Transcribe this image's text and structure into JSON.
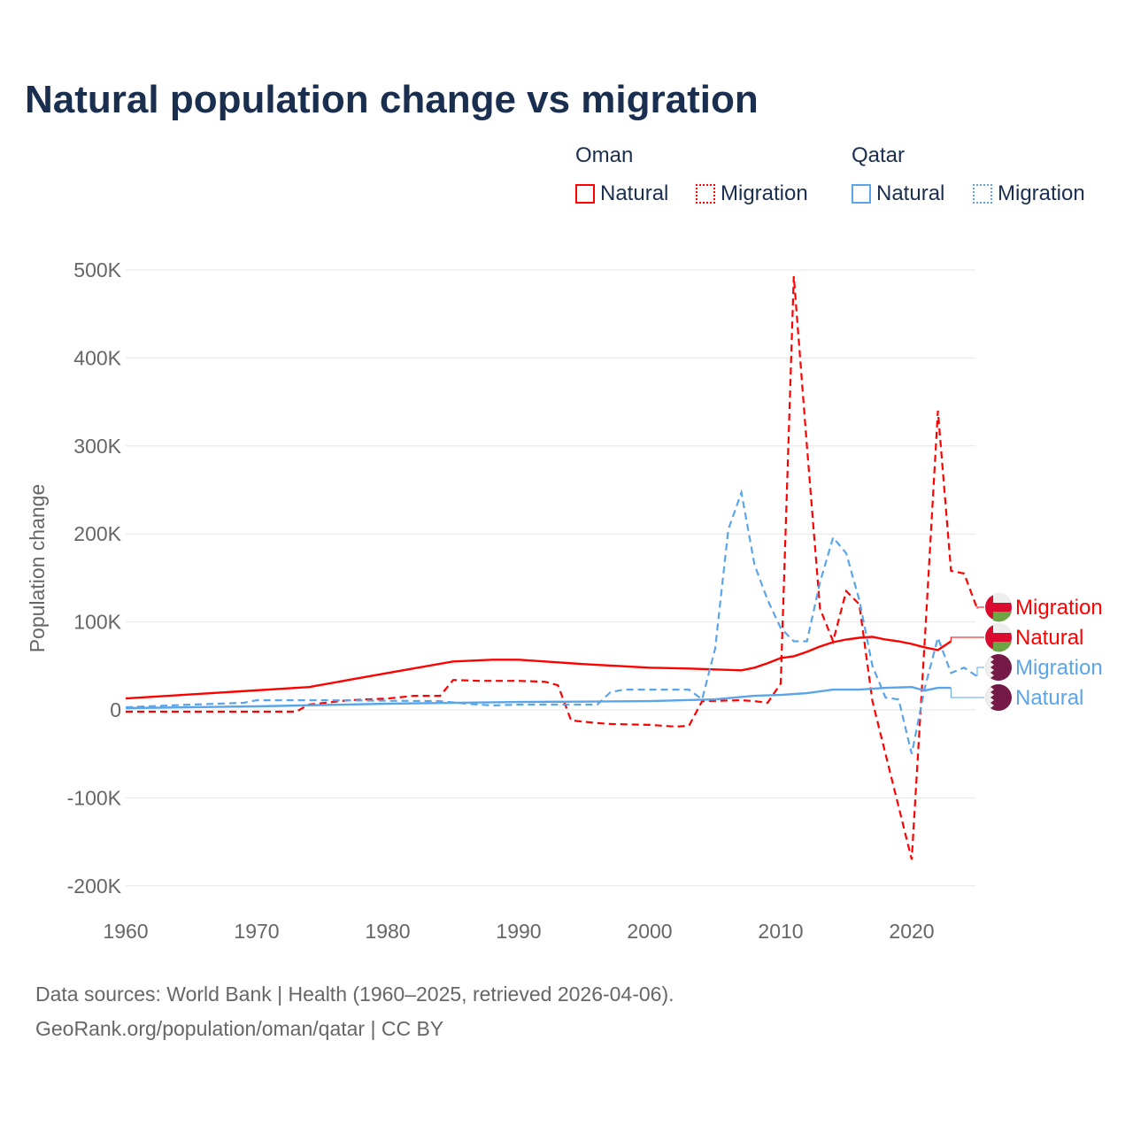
{
  "title": "Natural population change vs migration",
  "legend": {
    "groups": [
      {
        "name": "Oman",
        "items": [
          "Natural",
          "Migration"
        ]
      },
      {
        "name": "Qatar",
        "items": [
          "Natural",
          "Migration"
        ]
      }
    ]
  },
  "colors": {
    "oman": "#ff0000",
    "qatar": "#5aa5ea",
    "grid": "#e6e6e6",
    "axis_text": "#666666",
    "title": "#1a2e4f"
  },
  "footer": {
    "line1": "Data sources: World Bank | Health (1960–2025, retrieved 2026-04-06).",
    "line2": "GeoRank.org/population/oman/qatar | CC BY"
  },
  "chart_data": {
    "type": "line",
    "title": "Natural population change vs migration",
    "xlabel": "",
    "ylabel": "Population change",
    "xlim": [
      1960,
      2025
    ],
    "ylim": [
      -200000,
      500000
    ],
    "xticks": [
      1960,
      1970,
      1980,
      1990,
      2000,
      2010,
      2020
    ],
    "yticks": [
      {
        "v": -200000,
        "label": "-200K"
      },
      {
        "v": -100000,
        "label": "-100K"
      },
      {
        "v": 0,
        "label": "0"
      },
      {
        "v": 100000,
        "label": "100K"
      },
      {
        "v": 200000,
        "label": "200K"
      },
      {
        "v": 300000,
        "label": "300K"
      },
      {
        "v": 400000,
        "label": "400K"
      },
      {
        "v": 500000,
        "label": "500K"
      }
    ],
    "grid": true,
    "legend_position": "top-right",
    "series": [
      {
        "name": "Oman Migration",
        "label": "Migration",
        "country": "oman",
        "dashed": true,
        "points": [
          [
            1960,
            -2000
          ],
          [
            1973,
            -2000
          ],
          [
            1974,
            6000
          ],
          [
            1977,
            11000
          ],
          [
            1980,
            13000
          ],
          [
            1982,
            16000
          ],
          [
            1984,
            16000
          ],
          [
            1985,
            34000
          ],
          [
            1987,
            33000
          ],
          [
            1990,
            33000
          ],
          [
            1992,
            32000
          ],
          [
            1993,
            28000
          ],
          [
            1994,
            -12000
          ],
          [
            1996,
            -15000
          ],
          [
            1997,
            -16000
          ],
          [
            2000,
            -17000
          ],
          [
            2002,
            -19000
          ],
          [
            2003,
            -18000
          ],
          [
            2004,
            10000
          ],
          [
            2007,
            11000
          ],
          [
            2008,
            10000
          ],
          [
            2009,
            8000
          ],
          [
            2010,
            30000
          ],
          [
            2011,
            493000
          ],
          [
            2012,
            300000
          ],
          [
            2013,
            115000
          ],
          [
            2014,
            78000
          ],
          [
            2015,
            135000
          ],
          [
            2016,
            120000
          ],
          [
            2017,
            10000
          ],
          [
            2018,
            -50000
          ],
          [
            2019,
            -110000
          ],
          [
            2020,
            -170000
          ],
          [
            2021,
            80000
          ],
          [
            2022,
            340000
          ],
          [
            2023,
            158000
          ],
          [
            2024,
            155000
          ],
          [
            2025,
            115000
          ]
        ]
      },
      {
        "name": "Oman Natural",
        "label": "Natural",
        "country": "oman",
        "dashed": false,
        "points": [
          [
            1960,
            13000
          ],
          [
            1974,
            26000
          ],
          [
            1977,
            34000
          ],
          [
            1980,
            42000
          ],
          [
            1985,
            55000
          ],
          [
            1988,
            57000
          ],
          [
            1990,
            57000
          ],
          [
            1995,
            52000
          ],
          [
            2000,
            48000
          ],
          [
            2003,
            47000
          ],
          [
            2005,
            46000
          ],
          [
            2007,
            45000
          ],
          [
            2008,
            48000
          ],
          [
            2009,
            53000
          ],
          [
            2010,
            59000
          ],
          [
            2011,
            61000
          ],
          [
            2012,
            66000
          ],
          [
            2013,
            72000
          ],
          [
            2014,
            77000
          ],
          [
            2015,
            80000
          ],
          [
            2016,
            82000
          ],
          [
            2017,
            83000
          ],
          [
            2018,
            80000
          ],
          [
            2019,
            78000
          ],
          [
            2020,
            75000
          ],
          [
            2021,
            71000
          ],
          [
            2022,
            68000
          ],
          [
            2023,
            78000
          ]
        ]
      },
      {
        "name": "Qatar Migration",
        "label": "Migration",
        "country": "qatar",
        "dashed": true,
        "points": [
          [
            1960,
            3000
          ],
          [
            1965,
            6000
          ],
          [
            1969,
            8000
          ],
          [
            1970,
            11000
          ],
          [
            1975,
            11000
          ],
          [
            1984,
            10000
          ],
          [
            1986,
            7000
          ],
          [
            1988,
            5000
          ],
          [
            1990,
            6000
          ],
          [
            1996,
            6000
          ],
          [
            1997,
            20000
          ],
          [
            1998,
            23000
          ],
          [
            2003,
            23000
          ],
          [
            2004,
            12000
          ],
          [
            2005,
            70000
          ],
          [
            2006,
            205000
          ],
          [
            2007,
            247000
          ],
          [
            2008,
            165000
          ],
          [
            2009,
            125000
          ],
          [
            2010,
            93000
          ],
          [
            2011,
            78000
          ],
          [
            2012,
            78000
          ],
          [
            2013,
            145000
          ],
          [
            2014,
            196000
          ],
          [
            2015,
            178000
          ],
          [
            2016,
            125000
          ],
          [
            2017,
            50000
          ],
          [
            2018,
            14000
          ],
          [
            2019,
            12000
          ],
          [
            2020,
            -50000
          ],
          [
            2021,
            25000
          ],
          [
            2022,
            82000
          ],
          [
            2023,
            42000
          ],
          [
            2024,
            48000
          ],
          [
            2025,
            38000
          ]
        ]
      },
      {
        "name": "Qatar Natural",
        "label": "Natural",
        "country": "qatar",
        "dashed": false,
        "points": [
          [
            1960,
            2000
          ],
          [
            1970,
            4000
          ],
          [
            1980,
            7000
          ],
          [
            1990,
            9000
          ],
          [
            2000,
            10000
          ],
          [
            2005,
            12000
          ],
          [
            2008,
            16000
          ],
          [
            2010,
            17000
          ],
          [
            2012,
            19000
          ],
          [
            2014,
            23000
          ],
          [
            2016,
            23000
          ],
          [
            2018,
            25000
          ],
          [
            2020,
            26000
          ],
          [
            2021,
            22000
          ],
          [
            2022,
            25000
          ],
          [
            2023,
            25000
          ]
        ]
      }
    ]
  }
}
